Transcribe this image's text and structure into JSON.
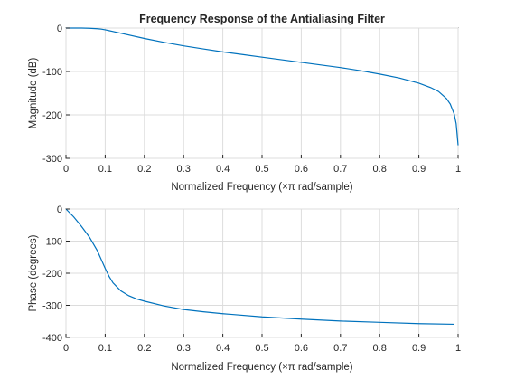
{
  "chart_data": [
    {
      "type": "line",
      "title": "Frequency Response of the Antialiasing Filter",
      "xlabel": "Normalized Frequency  (×π rad/sample)",
      "ylabel": "Magnitude (dB)",
      "xlim": [
        0,
        1
      ],
      "ylim": [
        -300,
        0
      ],
      "xticks": [
        0,
        0.1,
        0.2,
        0.3,
        0.4,
        0.5,
        0.6,
        0.7,
        0.8,
        0.9,
        1
      ],
      "xtick_labels": [
        "0",
        "0.1",
        "0.2",
        "0.3",
        "0.4",
        "0.5",
        "0.6",
        "0.7",
        "0.8",
        "0.9",
        "1"
      ],
      "yticks": [
        0,
        -100,
        -200,
        -300
      ],
      "ytick_labels": [
        "0",
        "-100",
        "-200",
        "-300"
      ],
      "grid": true,
      "color": "#0072bd",
      "series": [
        {
          "x": [
            0,
            0.02,
            0.04,
            0.06,
            0.08,
            0.09,
            0.1,
            0.11,
            0.12,
            0.15,
            0.2,
            0.25,
            0.3,
            0.35,
            0.4,
            0.45,
            0.5,
            0.55,
            0.6,
            0.65,
            0.7,
            0.75,
            0.8,
            0.85,
            0.9,
            0.93,
            0.95,
            0.97,
            0.98,
            0.99,
            0.995,
            1.0
          ],
          "y": [
            0,
            0,
            0,
            -0.5,
            -1.5,
            -2.5,
            -4,
            -6,
            -8,
            -14,
            -24,
            -33,
            -41,
            -48,
            -55,
            -61,
            -67,
            -73,
            -79,
            -85,
            -91,
            -98,
            -106,
            -115,
            -127,
            -137,
            -146,
            -162,
            -175,
            -198,
            -220,
            -270
          ]
        }
      ]
    },
    {
      "type": "line",
      "title": "",
      "xlabel": "Normalized Frequency  (×π rad/sample)",
      "ylabel": "Phase (degrees)",
      "xlim": [
        0,
        1
      ],
      "ylim": [
        -400,
        0
      ],
      "xticks": [
        0,
        0.1,
        0.2,
        0.3,
        0.4,
        0.5,
        0.6,
        0.7,
        0.8,
        0.9,
        1
      ],
      "xtick_labels": [
        "0",
        "0.1",
        "0.2",
        "0.3",
        "0.4",
        "0.5",
        "0.6",
        "0.7",
        "0.8",
        "0.9",
        "1"
      ],
      "yticks": [
        0,
        -100,
        -200,
        -300,
        -400
      ],
      "ytick_labels": [
        "0",
        "-100",
        "-200",
        "-300",
        "-400"
      ],
      "grid": true,
      "color": "#0072bd",
      "series": [
        {
          "x": [
            0,
            0.02,
            0.04,
            0.06,
            0.08,
            0.1,
            0.11,
            0.12,
            0.14,
            0.16,
            0.18,
            0.2,
            0.25,
            0.3,
            0.35,
            0.4,
            0.5,
            0.6,
            0.7,
            0.8,
            0.9,
            0.99
          ],
          "y": [
            0,
            -25,
            -55,
            -88,
            -130,
            -185,
            -210,
            -230,
            -255,
            -270,
            -280,
            -287,
            -302,
            -313,
            -320,
            -326,
            -336,
            -343,
            -349,
            -353,
            -357,
            -359
          ]
        }
      ]
    }
  ]
}
